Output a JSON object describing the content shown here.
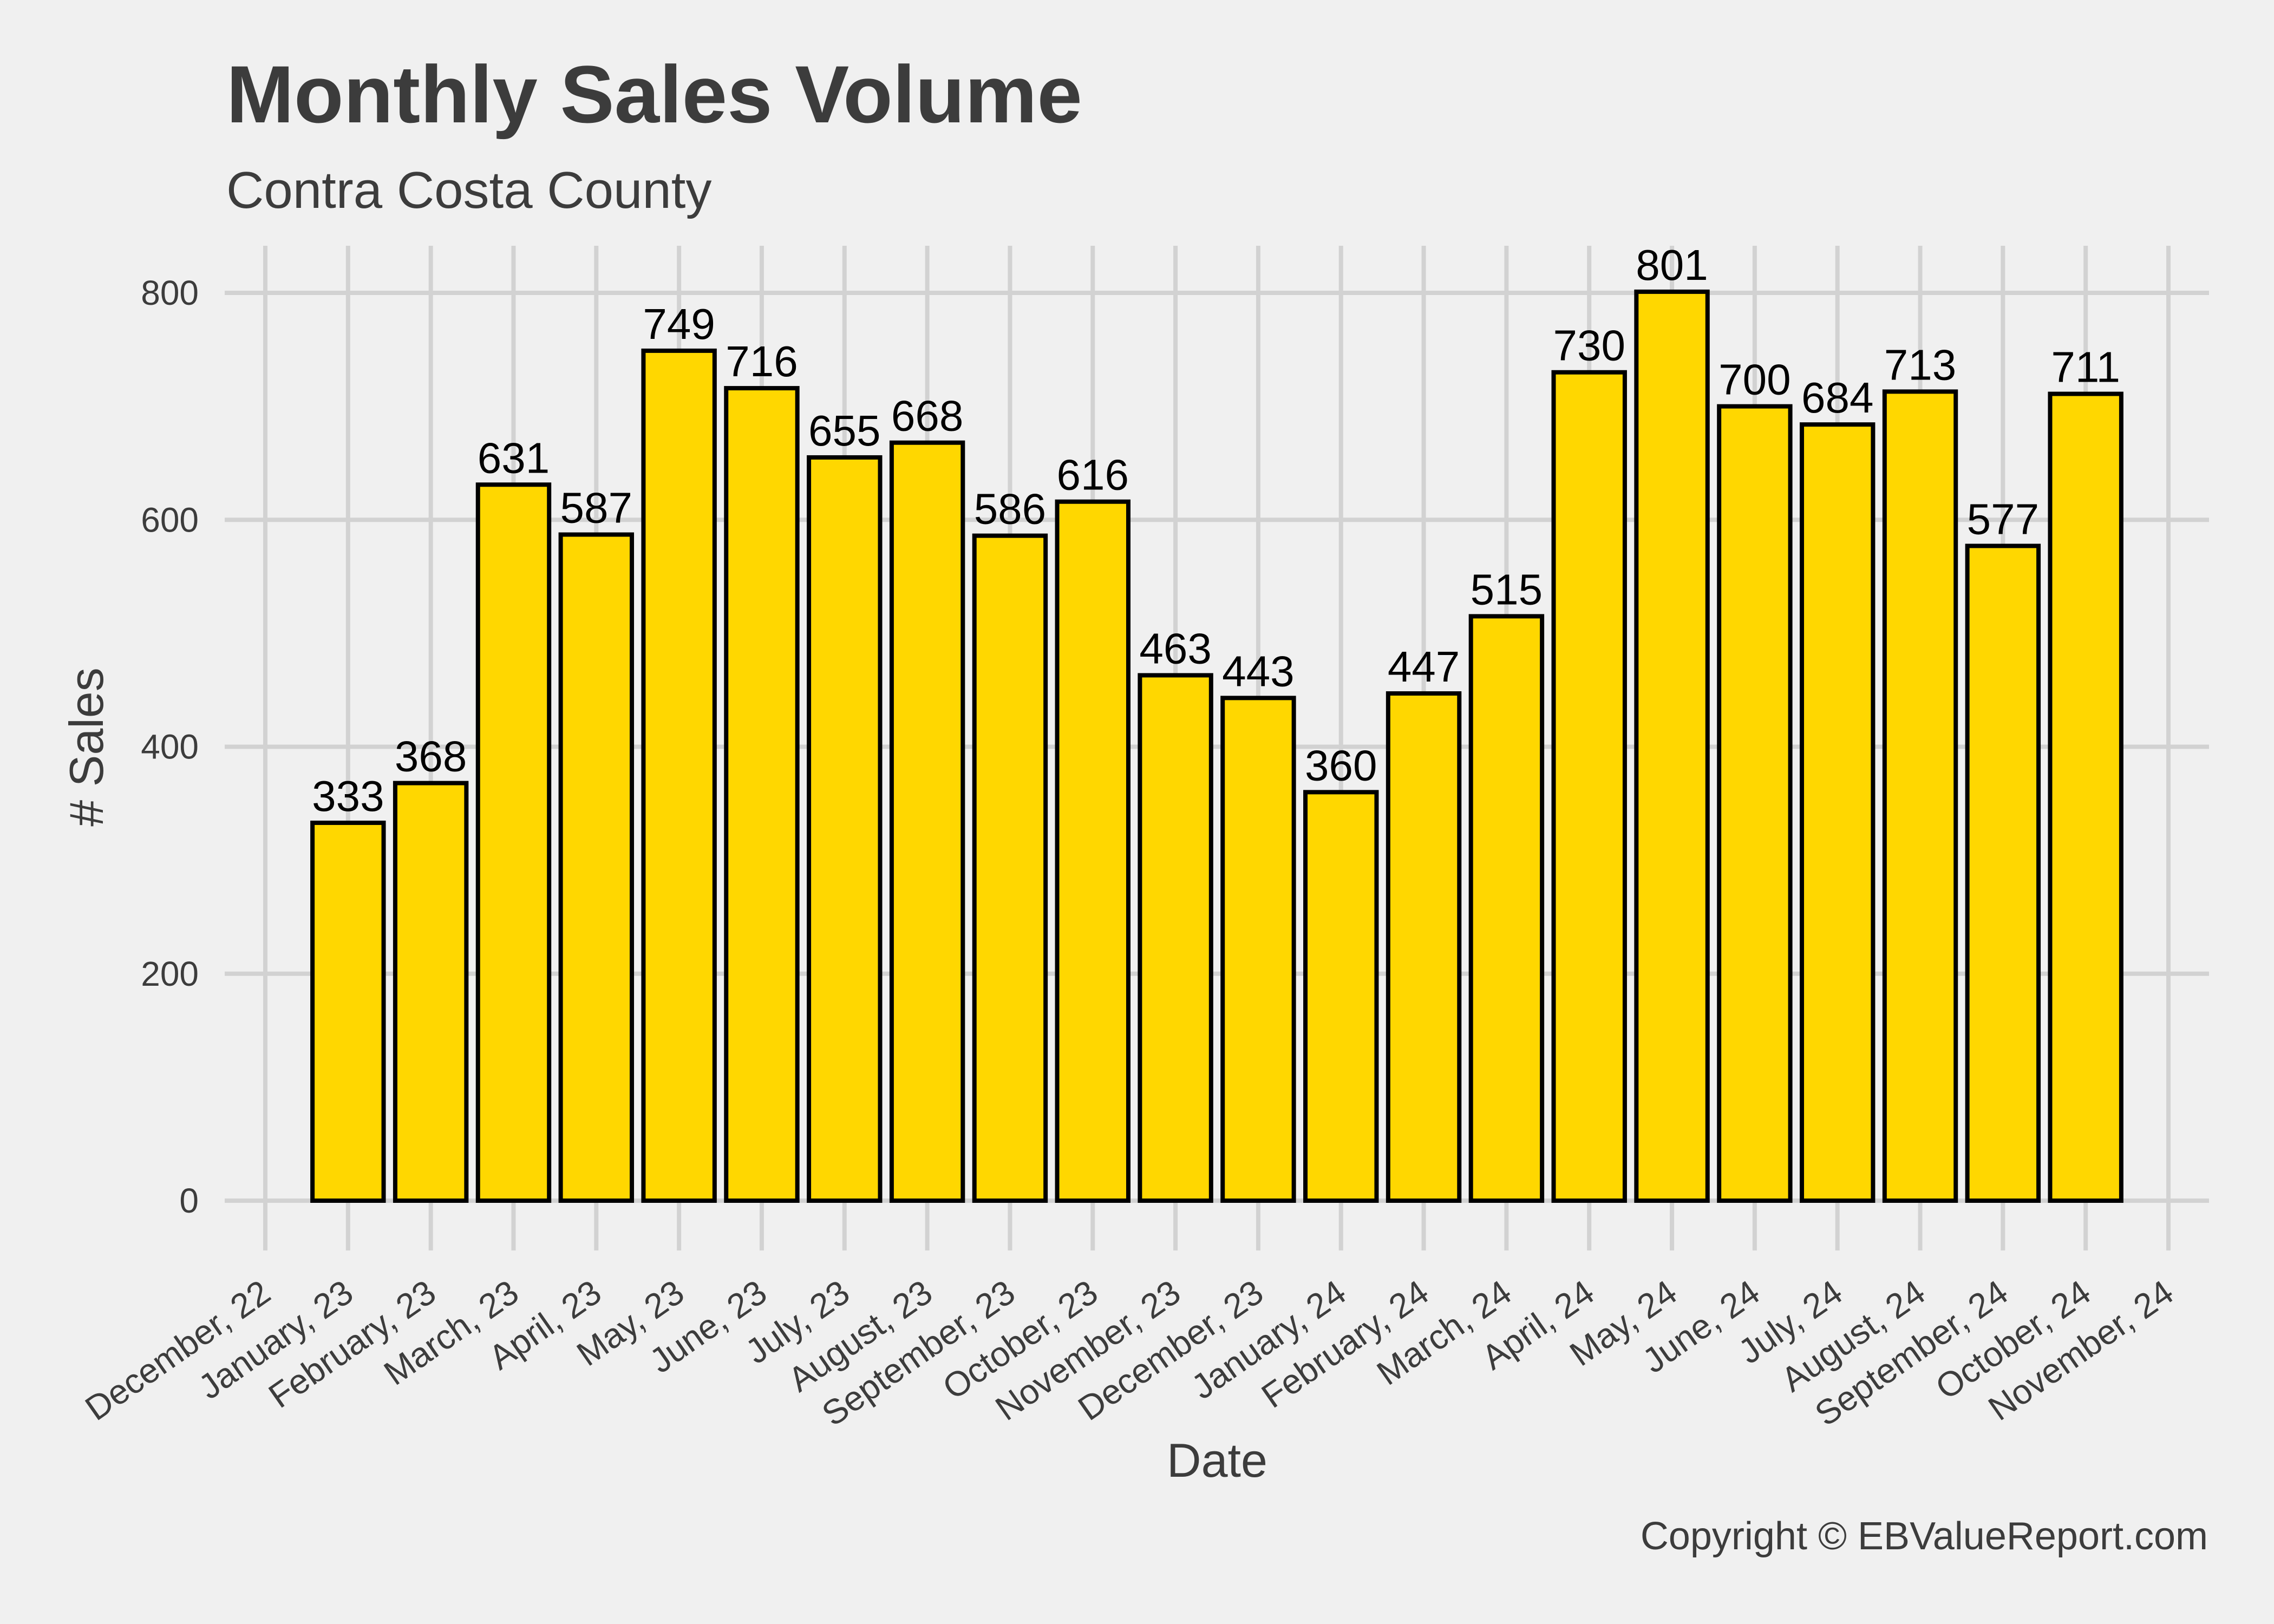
{
  "colors": {
    "background": "#F0F0F0",
    "grid": "#D2D2D2",
    "bar_fill": "#FFD700",
    "bar_stroke": "#000000",
    "text": "#3C3C3C",
    "label_text": "#000000"
  },
  "chart_data": {
    "type": "bar",
    "title": "Monthly Sales Volume",
    "subtitle": "Contra Costa County",
    "xlabel": "Date",
    "ylabel": "# Sales",
    "caption": "Copyright  © EBValueReport.com",
    "ylim": [
      0,
      830
    ],
    "yticks": [
      0,
      200,
      400,
      600,
      800
    ],
    "grid": true,
    "legend": "none",
    "x_tick_labels": [
      "December, 22",
      "January, 23",
      "February, 23",
      "March, 23",
      "April, 23",
      "May, 23",
      "June, 23",
      "July, 23",
      "August, 23",
      "September, 23",
      "October, 23",
      "November, 23",
      "December, 23",
      "January, 24",
      "February, 24",
      "March, 24",
      "April, 24",
      "May, 24",
      "June, 24",
      "July, 24",
      "August, 24",
      "September, 24",
      "October, 24",
      "November, 24"
    ],
    "categories": [
      "January, 23",
      "February, 23",
      "March, 23",
      "April, 23",
      "May, 23",
      "June, 23",
      "July, 23",
      "August, 23",
      "September, 23",
      "October, 23",
      "November, 23",
      "December, 23",
      "January, 24",
      "February, 24",
      "March, 24",
      "April, 24",
      "May, 24",
      "June, 24",
      "July, 24",
      "August, 24",
      "September, 24",
      "October, 24"
    ],
    "values": [
      333,
      368,
      631,
      587,
      749,
      716,
      655,
      668,
      586,
      616,
      463,
      443,
      360,
      447,
      515,
      730,
      801,
      700,
      684,
      713,
      577,
      711
    ],
    "data_labels": [
      "333",
      "368",
      "631",
      "587",
      "749",
      "716",
      "655",
      "668",
      "586",
      "616",
      "463",
      "443",
      "360",
      "447",
      "515",
      "730",
      "801",
      "700",
      "684",
      "713",
      "577",
      "711"
    ]
  }
}
